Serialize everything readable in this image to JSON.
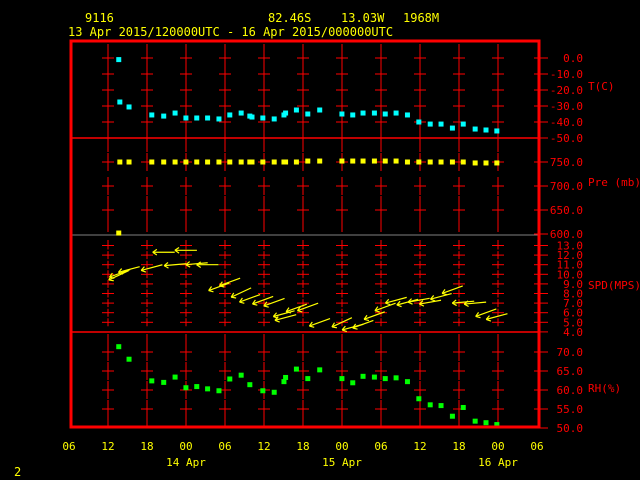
{
  "header": {
    "station": "9116",
    "lat": "82.46S",
    "lon": "13.03W",
    "elev": "1968M",
    "period": "13 Apr 2015/120000UTC - 16 Apr 2015/000000UTC"
  },
  "footer_number": "2",
  "colors": {
    "frame": "#ff0000",
    "text": "#ffff00",
    "temperature": "#00ffff",
    "pressure": "#ffff00",
    "wind": "#ffff00",
    "rh": "#00ff00"
  },
  "chart_data": {
    "type": "scatter",
    "x_axis": {
      "range": [
        "2015-04-13 06:00",
        "2015-04-16 06:00"
      ],
      "tick_labels": [
        "06",
        "12",
        "18",
        "00",
        "06",
        "12",
        "18",
        "00",
        "06",
        "12",
        "18",
        "00",
        "06"
      ],
      "date_labels": [
        "14 Apr",
        "15 Apr",
        "16 Apr"
      ]
    },
    "times": [
      "2015-04-13 13:30",
      "2015-04-13 13:40",
      "2015-04-13 15:05",
      "2015-04-13 18:35",
      "2015-04-13 20:25",
      "2015-04-13 22:10",
      "2015-04-13 23:50",
      "2015-04-14 01:30",
      "2015-04-14 03:10",
      "2015-04-14 04:55",
      "2015-04-14 06:35",
      "2015-04-14 08:20",
      "2015-04-14 09:40",
      "2015-04-14 10:00",
      "2015-04-14 11:40",
      "2015-04-14 13:25",
      "2015-04-14 14:55",
      "2015-04-14 15:10",
      "2015-04-14 16:50",
      "2015-04-14 18:35",
      "2015-04-14 20:25",
      "2015-04-14 23:50",
      "2015-04-15 01:30",
      "2015-04-15 03:05",
      "2015-04-15 04:50",
      "2015-04-15 06:30",
      "2015-04-15 08:10",
      "2015-04-15 09:55",
      "2015-04-15 11:40",
      "2015-04-15 13:25",
      "2015-04-15 15:05",
      "2015-04-15 16:50",
      "2015-04-15 18:30",
      "2015-04-15 20:20",
      "2015-04-15 22:00",
      "2015-04-15 23:40"
    ],
    "panels": [
      {
        "label": "T(C)",
        "range": [
          -50,
          0
        ],
        "tick_labels": [
          "0.0",
          "-10.0",
          "-20.0",
          "-30.0",
          "-40.0",
          "-50.0"
        ],
        "ticks": [
          0,
          -10,
          -20,
          -30,
          -40,
          -50
        ],
        "values": [
          -1,
          -27.5,
          -30.6,
          -35.6,
          -36.3,
          -34.4,
          -37.5,
          -37.5,
          -37.5,
          -38.1,
          -35.6,
          -34.4,
          -36.3,
          -36.9,
          -37.5,
          -38.1,
          -35.6,
          -34.4,
          -32.5,
          -35,
          -32.5,
          -35,
          -35.6,
          -34.4,
          -34.4,
          -35,
          -34.4,
          -35.6,
          -40,
          -41.3,
          -41.3,
          -43.8,
          -41.3,
          -44.4,
          -45,
          -45.6
        ]
      },
      {
        "label": "Pre (mb)",
        "range": [
          600,
          800
        ],
        "tick_labels": [
          "750.0",
          "700.0",
          "650.0",
          "600.0"
        ],
        "ticks": [
          750,
          700,
          650,
          600
        ],
        "values": [
          602,
          750,
          750,
          750,
          750,
          750,
          750,
          750,
          750,
          750,
          750,
          750,
          750,
          750,
          750,
          750,
          750,
          750,
          750,
          752,
          752,
          752,
          752,
          752,
          752,
          752,
          752,
          750,
          750,
          750,
          750,
          750,
          750,
          748,
          748,
          748
        ]
      },
      {
        "label": "SPD(MPS)",
        "range": [
          4,
          14
        ],
        "tick_labels": [
          "13.0",
          "12.0",
          "11.0",
          "10.0",
          "9.0",
          "8.0",
          "7.0",
          "6.0",
          "5.0",
          "4.0"
        ],
        "ticks": [
          13,
          12,
          11,
          10,
          9,
          8,
          7,
          6,
          5,
          4
        ],
        "values": [
          9.9,
          10.1,
          10.5,
          10.7,
          12.3,
          11.0,
          12.5,
          11.1,
          11.0,
          8.7,
          9.2,
          8.1,
          7.5,
          null,
          7.3,
          7.1,
          5.9,
          5.5,
          6.5,
          6.6,
          5.0,
          5.0,
          4.5,
          4.8,
          5.7,
          6.6,
          7.3,
          7.1,
          7.3,
          7.1,
          7.7,
          8.4,
          7.1,
          7.0,
          6.0,
          5.6
        ],
        "direction_deg": [
          65,
          70,
          75,
          75,
          90,
          85,
          90,
          85,
          90,
          70,
          70,
          65,
          70,
          null,
          70,
          70,
          75,
          75,
          70,
          70,
          70,
          65,
          75,
          70,
          70,
          70,
          75,
          75,
          80,
          80,
          75,
          70,
          85,
          85,
          70,
          75
        ]
      },
      {
        "label": "RH(%)",
        "range": [
          50,
          75
        ],
        "tick_labels": [
          "70.0",
          "65.0",
          "60.0",
          "55.0",
          "50.0"
        ],
        "ticks": [
          70,
          65,
          60,
          55,
          50
        ],
        "values": [
          71.4,
          null,
          68.1,
          62.4,
          62.0,
          63.4,
          60.6,
          60.9,
          60.3,
          59.8,
          62.9,
          63.9,
          61.4,
          null,
          59.8,
          59.4,
          62.2,
          63.3,
          65.5,
          63.0,
          65.3,
          63.0,
          61.9,
          63.6,
          63.4,
          63.0,
          63.2,
          62.2,
          57.7,
          56.1,
          55.9,
          53.1,
          55.4,
          51.8,
          51.4,
          50.9
        ]
      }
    ],
    "grid": true
  }
}
